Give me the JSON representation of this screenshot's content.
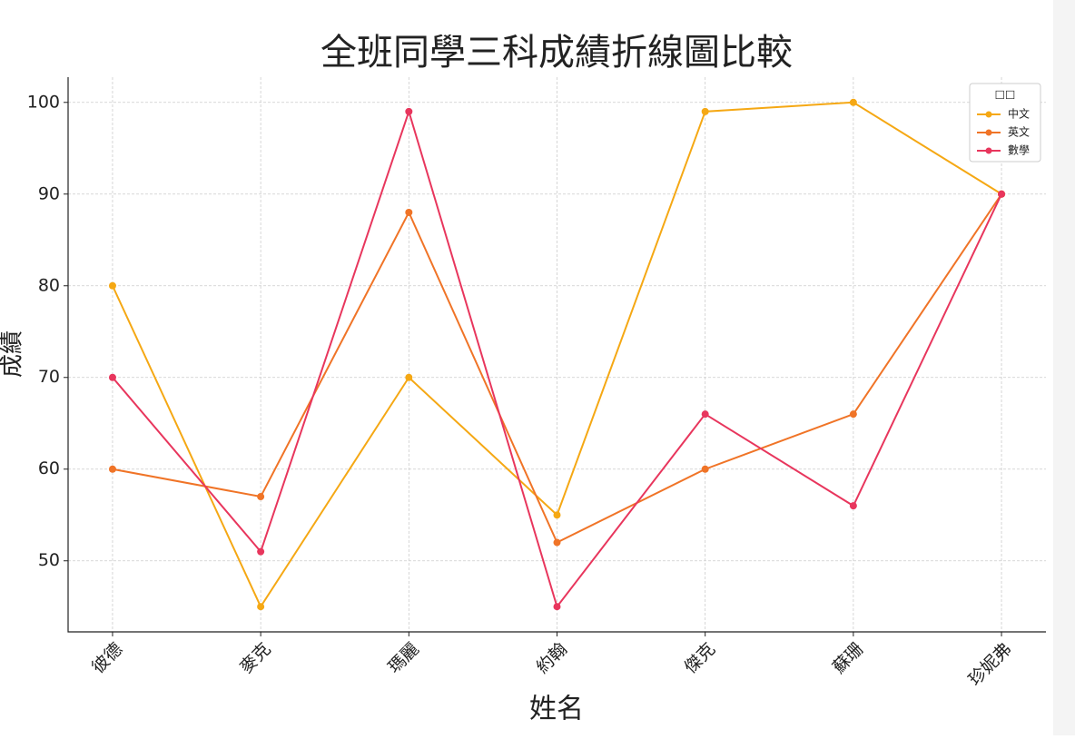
{
  "chart_data": {
    "type": "line",
    "title": "全班同學三科成績折線圖比較",
    "x_label": "姓名",
    "y_label": "成績",
    "categories": [
      "彼德",
      "麥克",
      "瑪麗",
      "約翰",
      "傑克",
      "蘇珊",
      "珍妮弗"
    ],
    "series": [
      {
        "name": "中文",
        "color": "#f5a814",
        "values": [
          80,
          45,
          70,
          55,
          99,
          100,
          90
        ]
      },
      {
        "name": "英文",
        "color": "#f07427",
        "values": [
          60,
          57,
          88,
          52,
          60,
          66,
          90
        ]
      },
      {
        "name": "數學",
        "color": "#e8365d",
        "values": [
          70,
          51,
          99,
          45,
          66,
          56,
          90
        ]
      }
    ],
    "legend_title": "□□",
    "legend": "upper right",
    "ylim": [
      42.25,
      102.75
    ],
    "yticks": [
      50,
      60,
      70,
      80,
      90,
      100
    ],
    "grid": true
  }
}
